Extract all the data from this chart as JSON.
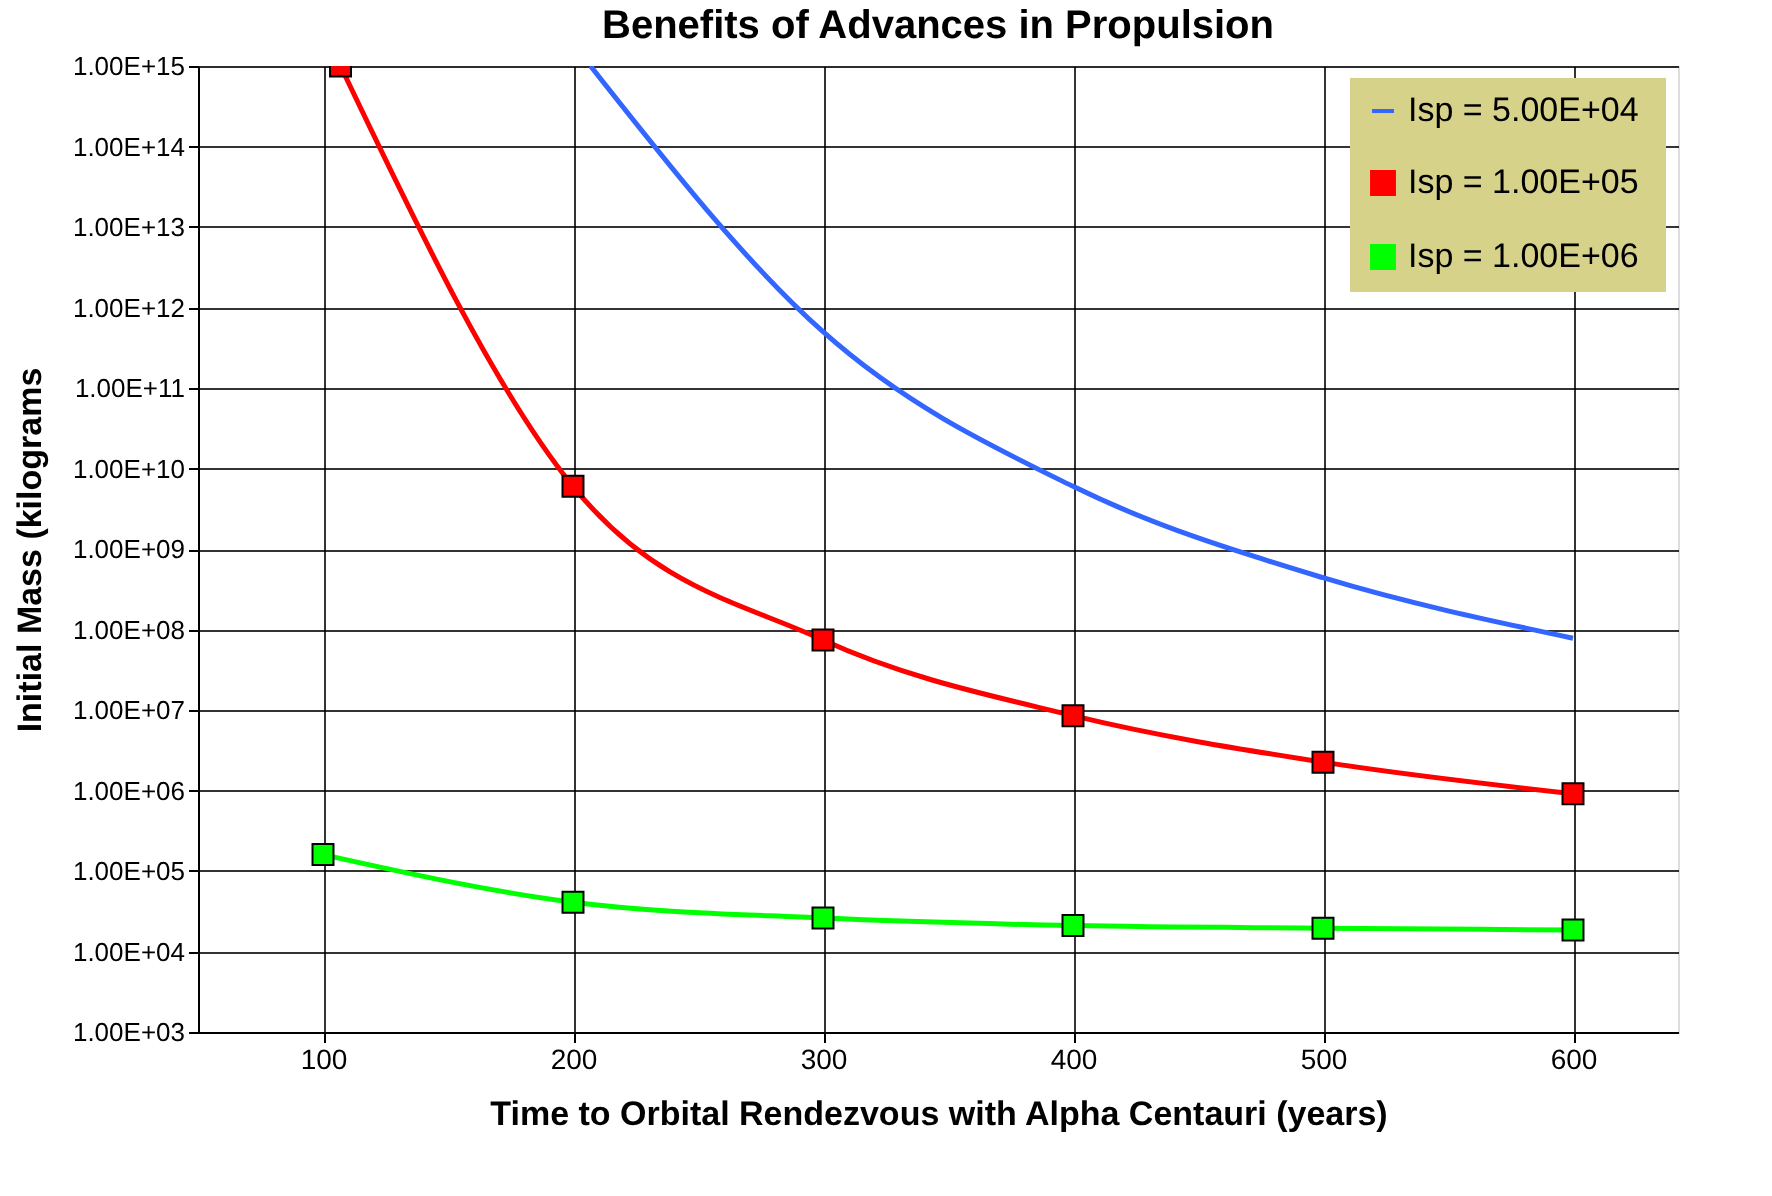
{
  "chart_data": {
    "type": "line",
    "title": "Benefits of Advances in Propulsion",
    "xlabel": "Time to Orbital Rendezvous with Alpha Centauri (years)",
    "ylabel": "Initial Mass (kilograms",
    "xlim": [
      50,
      642
    ],
    "xticks": [
      100,
      200,
      300,
      400,
      500,
      600
    ],
    "ylim": [
      1000,
      1000000000000000.0
    ],
    "yticks": [
      {
        "value": 1000,
        "label": "1.00E+03"
      },
      {
        "value": 10000,
        "label": "1.00E+04"
      },
      {
        "value": 100000,
        "label": "1.00E+05"
      },
      {
        "value": 1000000,
        "label": "1.00E+06"
      },
      {
        "value": 10000000,
        "label": "1.00E+07"
      },
      {
        "value": 100000000,
        "label": "1.00E+08"
      },
      {
        "value": 1000000000,
        "label": "1.00E+09"
      },
      {
        "value": 10000000000,
        "label": "1.00E+10"
      },
      {
        "value": 100000000000,
        "label": "1.00E+11"
      },
      {
        "value": 1000000000000,
        "label": "1.00E+12"
      },
      {
        "value": 10000000000000,
        "label": "1.00E+13"
      },
      {
        "value": 100000000000000,
        "label": "1.00E+14"
      },
      {
        "value": 1000000000000000,
        "label": "1.00E+15"
      }
    ],
    "log": true,
    "grid": true,
    "legend": "top right",
    "line_style": "solid",
    "series": [
      {
        "name": "Isp =  5.00E+04",
        "color": "#3366ff",
        "marker": "none",
        "x": [
          207,
          300,
          400,
          500,
          600
        ],
        "values": [
          1000000000000000.0,
          500000000000.0,
          6000000000.0,
          440000000.0,
          78000000.0
        ]
      },
      {
        "name": "Isp =  1.00E+05",
        "color": "#ff0000",
        "marker": "square",
        "x": [
          107,
          200,
          300,
          400,
          500,
          600
        ],
        "values": [
          1000000000000000.0,
          6000000000.0,
          74000000.0,
          8500000.0,
          2250000.0,
          910000.0
        ]
      },
      {
        "name": "Isp =  1.00E+06",
        "color": "#00ff00",
        "marker": "square",
        "x": [
          100,
          200,
          300,
          400,
          500,
          600
        ],
        "values": [
          160000.0,
          41000.0,
          26000.0,
          21000.0,
          19500.0,
          18500.0
        ]
      }
    ]
  }
}
